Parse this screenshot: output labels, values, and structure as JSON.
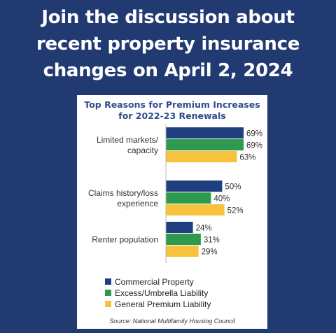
{
  "headline": {
    "line1": "Join the discussion about",
    "line2": "recent property insurance",
    "line3": "changes on April 2, 2024"
  },
  "colors": {
    "background": "#213a72",
    "card": "#ffffff",
    "title": "#2f4d8e"
  },
  "chart_data": {
    "type": "bar",
    "orientation": "horizontal",
    "title_line1": "Top Reasons for Premium Increases",
    "title_line2": "for 2022-23 Renewals",
    "categories": [
      {
        "lines": [
          "Limited markets/",
          "capacity"
        ]
      },
      {
        "lines": [
          "Claims history/loss",
          "experience"
        ]
      },
      {
        "lines": [
          "Renter population"
        ]
      }
    ],
    "series": [
      {
        "name": "Commercial Property",
        "color": "#1f3f7f",
        "values": [
          69,
          50,
          24
        ],
        "labels": [
          "69%",
          "50%",
          "24%"
        ]
      },
      {
        "name": "Excess/Umbrella Liability",
        "color": "#2e9a4d",
        "values": [
          69,
          40,
          31
        ],
        "labels": [
          "69%",
          "40%",
          "31%"
        ]
      },
      {
        "name": "General Premium Liability",
        "color": "#f7c23c",
        "values": [
          63,
          52,
          29
        ],
        "labels": [
          "63%",
          "52%",
          "29%"
        ]
      }
    ],
    "xlim": [
      0,
      100
    ],
    "grid": false,
    "legend_position": "bottom",
    "source": "Source: National Multifamily Housing Council"
  }
}
